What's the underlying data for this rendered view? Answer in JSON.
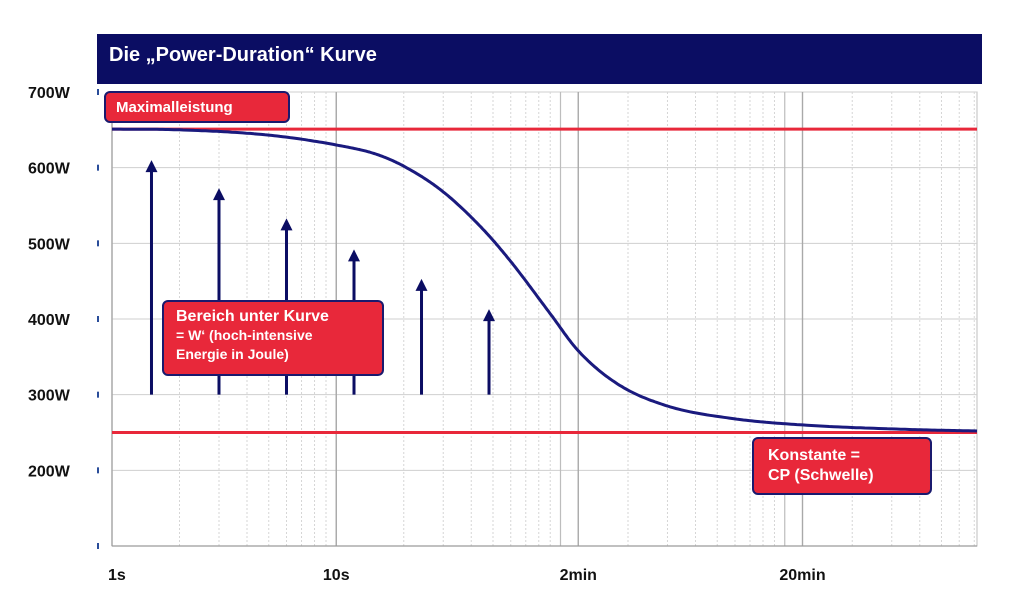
{
  "title": "Die „Power-Duration“ Kurve",
  "annotations": {
    "max_power": "Maximalleistung",
    "area_line1": "Bereich unter Kurve",
    "area_line2": "= W‘ (hoch-intensive",
    "area_line3": "Energie in Joule)",
    "cp_line1": "Konstante =",
    "cp_line2": "CP (Schwelle)"
  },
  "colors": {
    "title_bg": "#0b0d63",
    "curve": "#1a1a7e",
    "reference_lines": "#e8283a",
    "arrows": "#0b0d63",
    "grid": "#cfcfcf"
  },
  "chart_data": {
    "type": "line",
    "title": "Die „Power-Duration“ Kurve",
    "xlabel": "",
    "ylabel": "",
    "x_scale": "log",
    "x_unit": "seconds",
    "xlim": [
      1,
      7200
    ],
    "ylim": [
      100,
      700
    ],
    "x_ticks": [
      {
        "value": 1,
        "label": "1s"
      },
      {
        "value": 10,
        "label": "10s"
      },
      {
        "value": 120,
        "label": "2min"
      },
      {
        "value": 1200,
        "label": "20min"
      }
    ],
    "y_ticks": [
      {
        "value": 700,
        "label": "700W"
      },
      {
        "value": 600,
        "label": "600W"
      },
      {
        "value": 500,
        "label": "500W"
      },
      {
        "value": 400,
        "label": "400W"
      },
      {
        "value": 300,
        "label": "300W"
      },
      {
        "value": 200,
        "label": "200W"
      },
      {
        "value": 100,
        "label": ""
      }
    ],
    "grid": true,
    "series": [
      {
        "name": "",
        "x": [
          1,
          2,
          5,
          10,
          15,
          20,
          30,
          45,
          60,
          90,
          120,
          180,
          300,
          600,
          1200,
          3600,
          7200
        ],
        "y": [
          651,
          650,
          643,
          630,
          618,
          602,
          568,
          519,
          476,
          407,
          358,
          314,
          285,
          268,
          260,
          254,
          252
        ]
      }
    ],
    "reference_lines": [
      {
        "label": "Maximalleistung",
        "y": 651
      },
      {
        "label": "Konstante = CP (Schwelle)",
        "y": 250
      }
    ],
    "arrows": [
      {
        "x": 1.5,
        "y_from": 300,
        "y_to": 610
      },
      {
        "x": 3,
        "y_from": 300,
        "y_to": 573
      },
      {
        "x": 6,
        "y_from": 300,
        "y_to": 533
      },
      {
        "x": 12,
        "y_from": 300,
        "y_to": 492
      },
      {
        "x": 24,
        "y_from": 300,
        "y_to": 453
      },
      {
        "x": 48,
        "y_from": 300,
        "y_to": 413
      }
    ]
  }
}
